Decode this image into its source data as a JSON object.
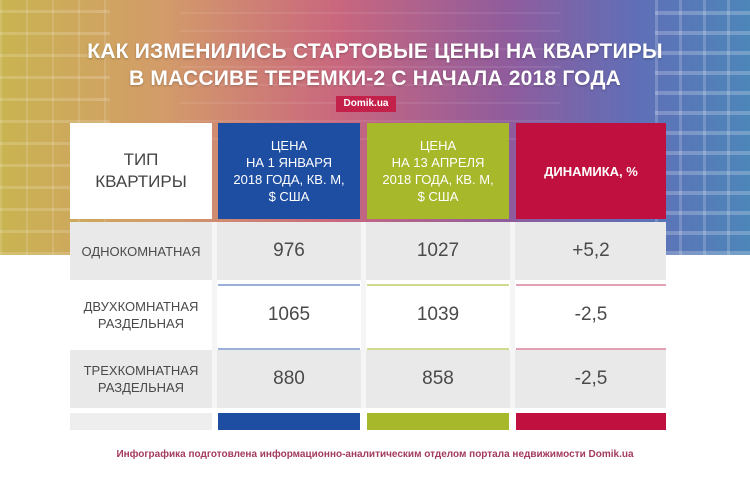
{
  "header": {
    "title_line1": "КАК ИЗМЕНИЛИСЬ СТАРТОВЫЕ ЦЕНЫ НА КВАРТИРЫ",
    "title_line2": "В МАССИВЕ ТЕРЕМКИ-2 С НАЧАЛА 2018 ГОДА",
    "brand": "Domik.ua"
  },
  "table": {
    "columns": [
      "ТИП КВАРТИРЫ",
      "ЦЕНА НА 1 ЯНВАРЯ 2018 ГОДА, КВ. М, $ США",
      "ЦЕНА НА 13 АПРЕЛЯ 2018 ГОДА, КВ. М, $ США",
      "ДИНАМИКА, %"
    ],
    "col_type_l1": "ТИП",
    "col_type_l2": "КВАРТИРЫ",
    "col_jan_l1": "ЦЕНА",
    "col_jan_l2": "НА 1 ЯНВАРЯ",
    "col_jan_l3": "2018 ГОДА, КВ. М,",
    "col_jan_l4": "$ США",
    "col_apr_l1": "ЦЕНА",
    "col_apr_l2": "НА 13 АПРЕЛЯ",
    "col_apr_l3": "2018 ГОДА, КВ. М,",
    "col_apr_l4": "$ США",
    "col_dyn": "ДИНАМИКА, %",
    "rows": [
      {
        "type_l1": "ОДНОКОМНАТНАЯ",
        "type_l2": "",
        "jan": "976",
        "apr": "1027",
        "dyn": "+5,2"
      },
      {
        "type_l1": "ДВУХКОМНАТНАЯ",
        "type_l2": "РАЗДЕЛЬНАЯ",
        "jan": "1065",
        "apr": "1039",
        "dyn": "-2,5"
      },
      {
        "type_l1": "ТРЕХКОМНАТНАЯ",
        "type_l2": "РАЗДЕЛЬНАЯ",
        "jan": "880",
        "apr": "858",
        "dyn": "-2,5"
      }
    ]
  },
  "colors": {
    "jan": "#1d4ea1",
    "apr": "#a7b82a",
    "dyn": "#c0103f",
    "row_grey": "#e9e9e9"
  },
  "footer": {
    "text": "Инфографика подготовлена информационно-аналитическим отделом портала недвижимости Domik.ua"
  }
}
